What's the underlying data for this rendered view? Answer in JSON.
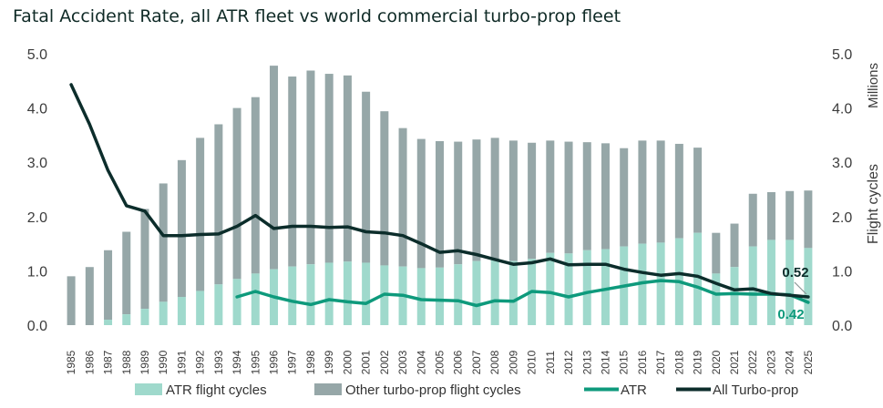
{
  "chart_data": {
    "type": "bar",
    "title": "Fatal Accident Rate, all ATR fleet vs world commercial turbo-prop fleet",
    "x": [
      "1985",
      "1986",
      "1987",
      "1988",
      "1989",
      "1990",
      "1991",
      "1992",
      "1993",
      "1994",
      "1995",
      "1996",
      "1997",
      "1998",
      "1999",
      "2000",
      "2001",
      "2002",
      "2003",
      "2004",
      "2005",
      "2006",
      "2007",
      "2008",
      "2009",
      "2010",
      "2011",
      "2012",
      "2013",
      "2014",
      "2015",
      "2016",
      "2017",
      "2018",
      "2019",
      "2020",
      "2021",
      "2022",
      "2023",
      "2024",
      "2025"
    ],
    "y_left": {
      "ylim": [
        0,
        5
      ],
      "ticks": [
        "0.0",
        "1.0",
        "2.0",
        "3.0",
        "4.0",
        "5.0"
      ]
    },
    "y_right": {
      "ylim": [
        0,
        5
      ],
      "ticks": [
        "0.0",
        "1.0",
        "2.0",
        "3.0",
        "4.0",
        "5.0"
      ],
      "label_top": "Millions",
      "label": "Flight cycles"
    },
    "series": [
      {
        "name": "ATR flight cycles",
        "kind": "bar",
        "color": "#9fd9cc",
        "values": [
          0.0,
          0.0,
          0.1,
          0.2,
          0.3,
          0.43,
          0.52,
          0.63,
          0.75,
          0.85,
          0.95,
          1.03,
          1.08,
          1.12,
          1.15,
          1.17,
          1.15,
          1.1,
          1.08,
          1.05,
          1.06,
          1.12,
          1.18,
          1.2,
          1.18,
          1.22,
          1.33,
          1.32,
          1.38,
          1.4,
          1.45,
          1.5,
          1.52,
          1.6,
          1.7,
          0.95,
          1.07,
          1.45,
          1.57,
          1.57,
          1.42
        ]
      },
      {
        "name": "Other turbo-prop flight cycles",
        "kind": "bar",
        "color": "#96a7a8",
        "values": [
          0.9,
          1.07,
          1.28,
          1.52,
          1.84,
          2.18,
          2.52,
          2.82,
          2.95,
          3.15,
          3.25,
          3.75,
          3.5,
          3.57,
          3.48,
          3.43,
          3.15,
          2.84,
          2.55,
          2.38,
          2.33,
          2.26,
          2.24,
          2.25,
          2.22,
          2.14,
          2.07,
          2.06,
          1.99,
          1.95,
          1.81,
          1.9,
          1.88,
          1.74,
          1.57,
          0.75,
          0.8,
          0.97,
          0.88,
          0.9,
          1.06
        ]
      },
      {
        "name": "ATR",
        "kind": "line",
        "color": "#0e9a7c",
        "values": [
          null,
          null,
          null,
          null,
          null,
          null,
          null,
          null,
          null,
          0.52,
          0.62,
          0.52,
          0.44,
          0.38,
          0.47,
          0.43,
          0.4,
          0.57,
          0.55,
          0.47,
          0.46,
          0.45,
          0.36,
          0.45,
          0.44,
          0.62,
          0.6,
          0.52,
          0.6,
          0.66,
          0.72,
          0.78,
          0.82,
          0.8,
          0.7,
          0.57,
          0.58,
          0.57,
          0.57,
          0.56,
          0.42
        ]
      },
      {
        "name": "All Turbo-prop",
        "kind": "line",
        "color": "#0c2d2b",
        "values": [
          4.43,
          3.7,
          2.85,
          2.2,
          2.1,
          1.65,
          1.65,
          1.67,
          1.68,
          1.82,
          2.02,
          1.78,
          1.82,
          1.82,
          1.8,
          1.81,
          1.72,
          1.7,
          1.65,
          1.5,
          1.34,
          1.37,
          1.3,
          1.21,
          1.12,
          1.15,
          1.22,
          1.11,
          1.12,
          1.12,
          1.03,
          0.97,
          0.92,
          0.95,
          0.9,
          0.77,
          0.65,
          0.67,
          0.58,
          0.55,
          0.52
        ]
      }
    ],
    "annotations": [
      {
        "text": "0.52",
        "series": "All Turbo-prop",
        "x": "2025",
        "color": "#0c2d2b"
      },
      {
        "text": "0.42",
        "series": "ATR",
        "x": "2025",
        "color": "#0e9a7c"
      }
    ],
    "legend_position": "bottom",
    "grid": false
  }
}
